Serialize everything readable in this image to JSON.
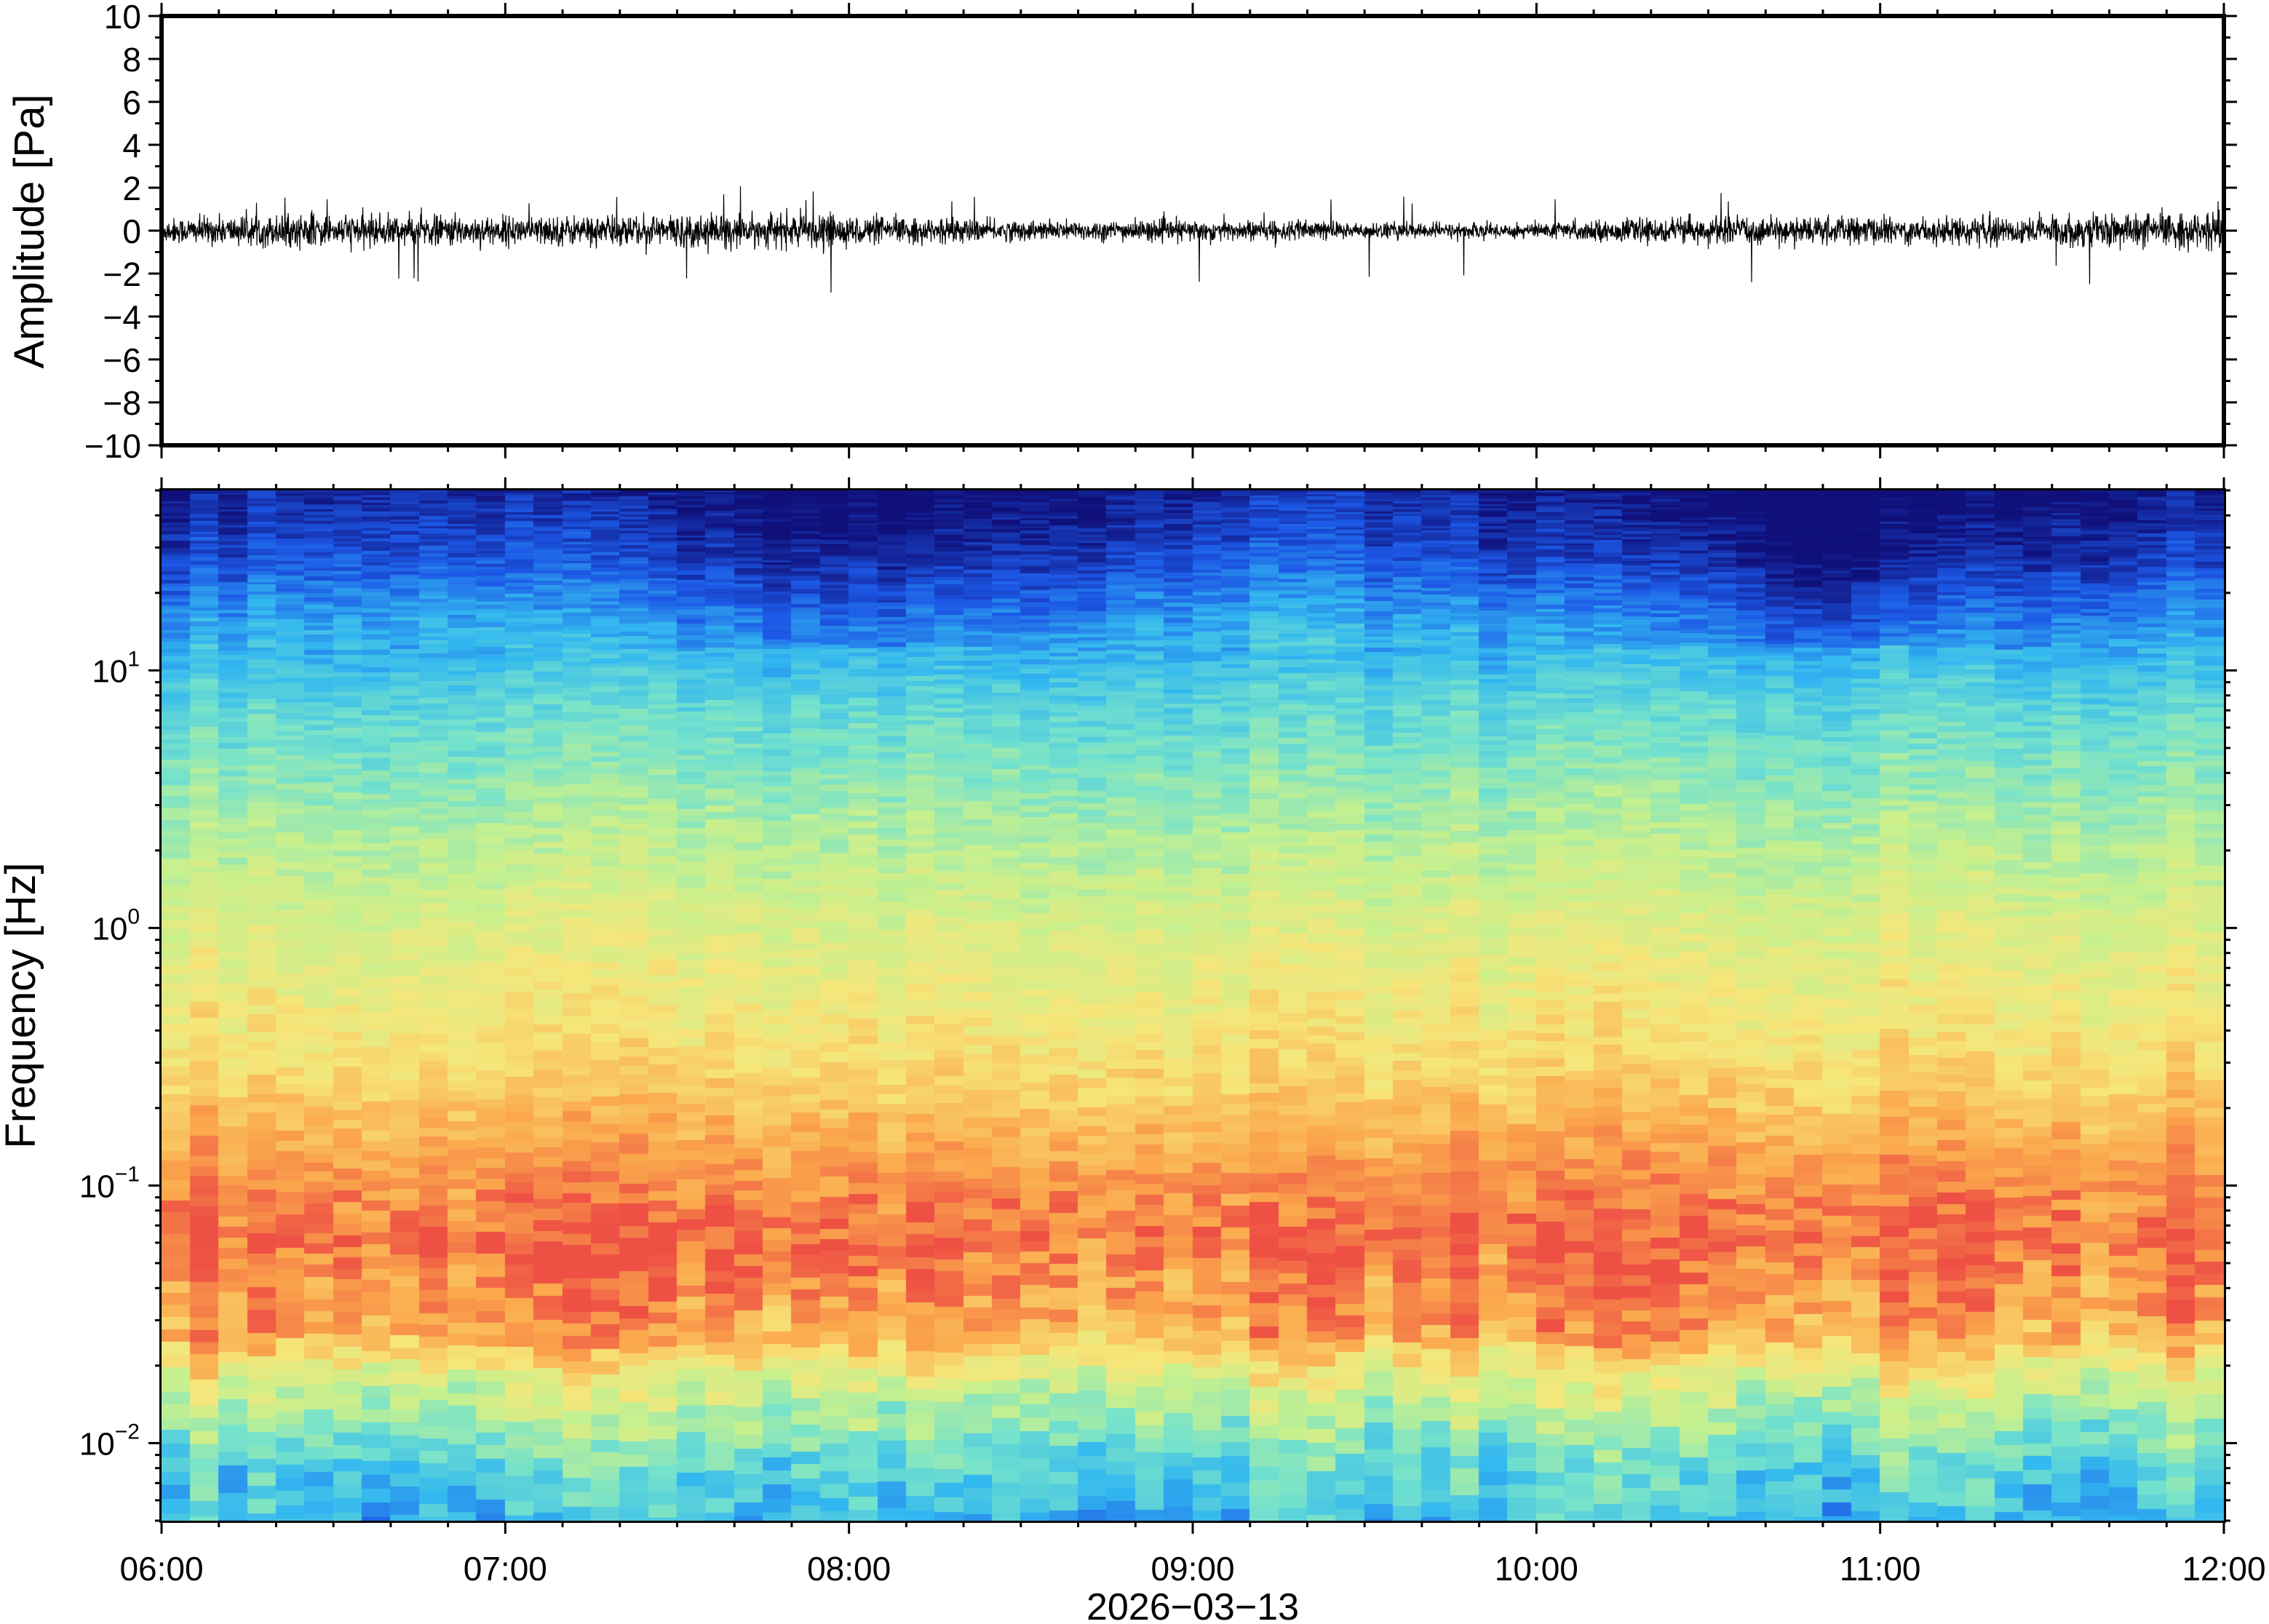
{
  "chart_data": [
    {
      "type": "line",
      "ylabel": "Amplitude [Pa]",
      "ylim": [
        -10,
        10
      ],
      "yticks": [
        10,
        8,
        6,
        4,
        2,
        0,
        -2,
        -4,
        -6,
        -8,
        -10
      ],
      "ytick_labels": [
        "10",
        "8",
        "6",
        "4",
        "2",
        "0",
        "−2",
        "−4",
        "−6",
        "−8",
        "−10"
      ],
      "x_range_hours": [
        6,
        12
      ],
      "series": [
        {
          "values": "noise",
          "mean": 0,
          "typical_amplitude": 0.6,
          "peak_min": -2.9,
          "peak_max": 2.1,
          "color": "#000000"
        }
      ],
      "grid": false
    },
    {
      "type": "heatmap",
      "ylabel": "Frequency [Hz]",
      "yscale": "log",
      "ylim": [
        0.005,
        50
      ],
      "yticks": [
        {
          "base": "10",
          "exp": "1",
          "value": 10
        },
        {
          "base": "10",
          "exp": "0",
          "value": 1
        },
        {
          "base": "10",
          "exp": "−1",
          "value": 0.1
        },
        {
          "base": "10",
          "exp": "−2",
          "value": 0.01
        }
      ],
      "xlabel": "2026−03−13",
      "xticks": [
        "06:00",
        "07:00",
        "08:00",
        "09:00",
        "10:00",
        "11:00",
        "12:00"
      ],
      "colormap": [
        "#10107a",
        "#1c58e6",
        "#33b8f0",
        "#74e2cc",
        "#c6f08e",
        "#f6e67a",
        "#fba84c",
        "#ee5044"
      ],
      "grid": false
    }
  ]
}
